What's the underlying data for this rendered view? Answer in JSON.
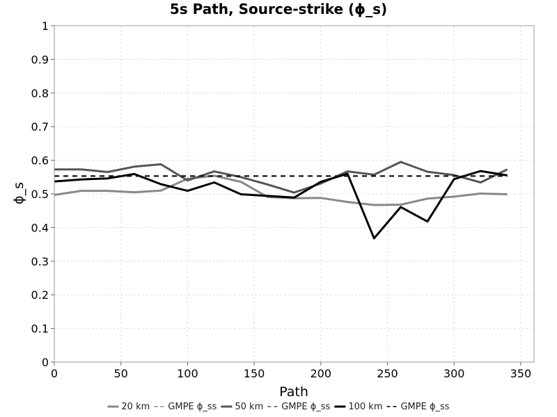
{
  "chart_data": {
    "type": "line",
    "title": "5s Path, Source-strike (ϕ_s)",
    "xlabel": "Path",
    "ylabel": "ϕ_s",
    "xlim": [
      0,
      360
    ],
    "ylim": [
      0,
      1
    ],
    "xticks": [
      0,
      50,
      100,
      150,
      200,
      250,
      300,
      350
    ],
    "yticks": [
      0,
      0.1,
      0.2,
      0.3,
      0.4,
      0.5,
      0.6,
      0.7,
      0.8,
      0.9,
      1
    ],
    "ytick_labels": [
      "0",
      "0.1",
      "0.2",
      "0.3",
      "0.4",
      "0.5",
      "0.6",
      "0.7",
      "0.8",
      "0.9",
      "1"
    ],
    "grid": true,
    "legend_position": "bottom",
    "series": [
      {
        "name": "20 km",
        "color": "#888888",
        "dashed": false,
        "x": [
          0,
          20,
          40,
          60,
          80,
          100,
          120,
          140,
          160,
          180,
          200,
          220,
          240,
          260,
          280,
          300,
          320,
          340
        ],
        "y": [
          0.497,
          0.509,
          0.509,
          0.505,
          0.51,
          0.545,
          0.554,
          0.536,
          0.491,
          0.487,
          0.488,
          0.476,
          0.467,
          0.468,
          0.486,
          0.492,
          0.501,
          0.499
        ]
      },
      {
        "name": "GMPE ϕ_ss",
        "color": "#888888",
        "dashed": true,
        "x": [
          0,
          340
        ],
        "y": [
          0.553,
          0.553
        ]
      },
      {
        "name": "50 km",
        "color": "#555555",
        "dashed": false,
        "x": [
          0,
          20,
          40,
          60,
          80,
          100,
          120,
          140,
          160,
          180,
          200,
          220,
          240,
          260,
          280,
          300,
          320,
          340
        ],
        "y": [
          0.573,
          0.573,
          0.565,
          0.581,
          0.588,
          0.54,
          0.567,
          0.55,
          0.528,
          0.504,
          0.531,
          0.567,
          0.557,
          0.595,
          0.566,
          0.556,
          0.534,
          0.573
        ]
      },
      {
        "name": "GMPE ϕ_ss",
        "color": "#555555",
        "dashed": true,
        "x": [
          0,
          340
        ],
        "y": [
          0.553,
          0.553
        ]
      },
      {
        "name": "100 km",
        "color": "#000000",
        "dashed": false,
        "x": [
          0,
          20,
          40,
          60,
          80,
          100,
          120,
          140,
          160,
          180,
          200,
          220,
          240,
          260,
          280,
          300,
          320,
          340
        ],
        "y": [
          0.537,
          0.543,
          0.546,
          0.559,
          0.529,
          0.509,
          0.534,
          0.499,
          0.494,
          0.489,
          0.536,
          0.56,
          0.368,
          0.461,
          0.418,
          0.544,
          0.568,
          0.555
        ]
      },
      {
        "name": "GMPE ϕ_ss",
        "color": "#000000",
        "dashed": true,
        "x": [
          0,
          340
        ],
        "y": [
          0.553,
          0.553
        ]
      }
    ]
  }
}
